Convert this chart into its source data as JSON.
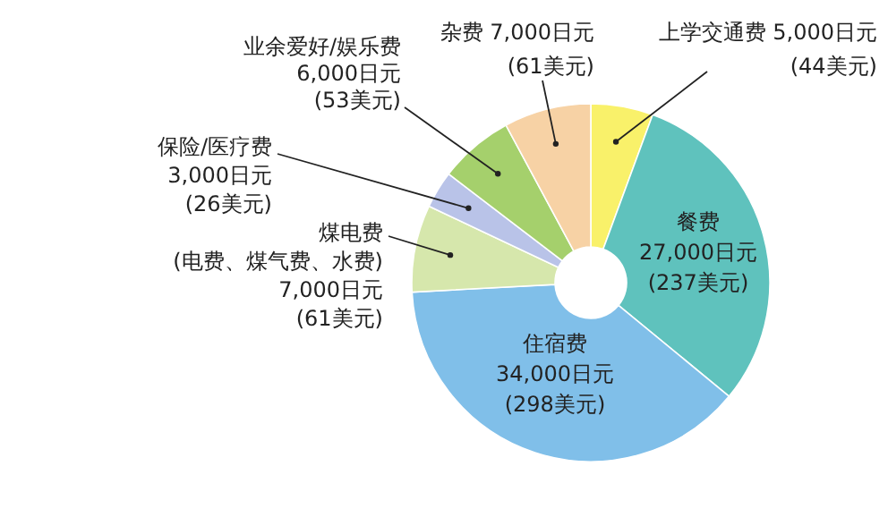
{
  "chart_data": {
    "type": "donut",
    "categories": [
      "上学交通费",
      "餐费",
      "住宿费",
      "煤电费\n(电费、煤气费、水费)",
      "保险/医疗费",
      "业余爱好/娱乐费",
      "杂费"
    ],
    "values": [
      5000,
      27000,
      34000,
      7000,
      3000,
      6000,
      7000
    ],
    "colors": [
      "#f9f16a",
      "#5fc2bd",
      "#80bfe9",
      "#d6e7ac",
      "#b9c3e8",
      "#a5d06c",
      "#f7d2a5"
    ],
    "value_labels": [
      "5,000日元\n(44美元)",
      "27,000日元\n(237美元)",
      "34,000日元\n(298美元)",
      "7,000日元\n(61美元)",
      "3,000日元\n(26美元)",
      "6,000日元\n(53美元)",
      "7,000日元\n(61美元)"
    ]
  }
}
